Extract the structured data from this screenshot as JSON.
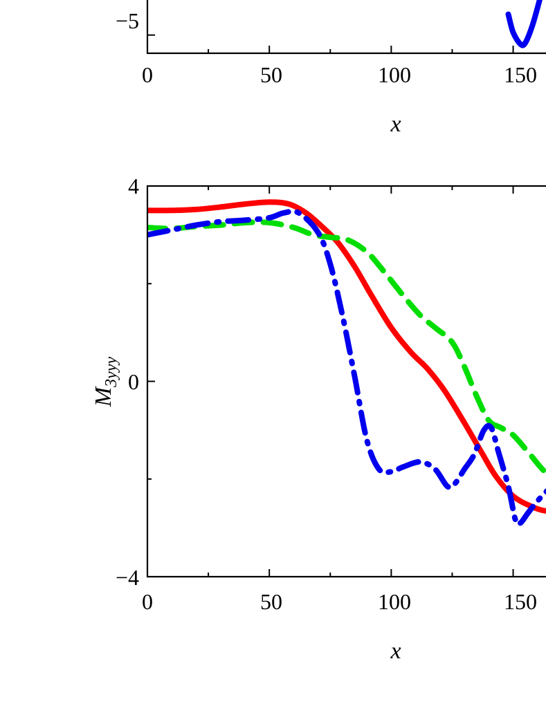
{
  "chart_data": [
    {
      "type": "line",
      "xlabel": "x",
      "ylabel": "",
      "xlim": [
        0,
        170
      ],
      "ylim": [
        -5.7,
        3
      ],
      "x_ticks": [
        "0",
        "50",
        "100",
        "150"
      ],
      "y_ticks": [
        "−5"
      ],
      "grid": false,
      "series": [
        {
          "color": "#0000ee",
          "style": "solid",
          "points": [
            [
              148,
              -4.2
            ],
            [
              150,
              -4.9
            ],
            [
              153,
              -5.35
            ],
            [
              155,
              -5.3
            ],
            [
              158,
              -4.6
            ],
            [
              161,
              -3.6
            ],
            [
              164,
              -2.6
            ]
          ]
        }
      ]
    },
    {
      "type": "line",
      "xlabel": "x",
      "ylabel": "M",
      "ylabel_sub": "3yyy",
      "xlim": [
        0,
        170
      ],
      "ylim": [
        -4,
        4
      ],
      "x_ticks": [
        "0",
        "50",
        "100",
        "150"
      ],
      "y_ticks": [
        "4",
        "0",
        "−4"
      ],
      "grid": false,
      "series": [
        {
          "color": "#ff0000",
          "style": "solid",
          "points": [
            [
              0,
              3.5
            ],
            [
              10,
              3.5
            ],
            [
              20,
              3.52
            ],
            [
              30,
              3.57
            ],
            [
              40,
              3.63
            ],
            [
              50,
              3.67
            ],
            [
              58,
              3.63
            ],
            [
              65,
              3.45
            ],
            [
              72,
              3.15
            ],
            [
              78,
              2.85
            ],
            [
              85,
              2.35
            ],
            [
              92,
              1.75
            ],
            [
              100,
              1.1
            ],
            [
              108,
              0.6
            ],
            [
              115,
              0.25
            ],
            [
              122,
              -0.2
            ],
            [
              130,
              -0.85
            ],
            [
              137,
              -1.45
            ],
            [
              143,
              -1.95
            ],
            [
              150,
              -2.35
            ],
            [
              157,
              -2.55
            ],
            [
              163,
              -2.65
            ],
            [
              170,
              -2.65
            ]
          ]
        },
        {
          "color": "#00dd00",
          "style": "dashed",
          "points": [
            [
              0,
              3.15
            ],
            [
              10,
              3.13
            ],
            [
              20,
              3.17
            ],
            [
              30,
              3.2
            ],
            [
              40,
              3.25
            ],
            [
              50,
              3.25
            ],
            [
              60,
              3.15
            ],
            [
              68,
              3.0
            ],
            [
              75,
              2.95
            ],
            [
              82,
              2.9
            ],
            [
              90,
              2.65
            ],
            [
              97,
              2.25
            ],
            [
              105,
              1.75
            ],
            [
              112,
              1.35
            ],
            [
              118,
              1.1
            ],
            [
              125,
              0.8
            ],
            [
              130,
              0.3
            ],
            [
              135,
              -0.3
            ],
            [
              140,
              -0.8
            ],
            [
              145,
              -0.95
            ],
            [
              150,
              -1.1
            ],
            [
              157,
              -1.5
            ],
            [
              163,
              -1.85
            ],
            [
              170,
              -2.1
            ]
          ]
        },
        {
          "color": "#0000ee",
          "style": "dashdot",
          "points": [
            [
              0,
              3.0
            ],
            [
              10,
              3.1
            ],
            [
              20,
              3.2
            ],
            [
              30,
              3.27
            ],
            [
              40,
              3.3
            ],
            [
              50,
              3.35
            ],
            [
              56,
              3.45
            ],
            [
              62,
              3.45
            ],
            [
              70,
              3.05
            ],
            [
              75,
              2.4
            ],
            [
              80,
              1.35
            ],
            [
              85,
              0.1
            ],
            [
              90,
              -1.2
            ],
            [
              95,
              -1.8
            ],
            [
              100,
              -1.85
            ],
            [
              105,
              -1.75
            ],
            [
              112,
              -1.65
            ],
            [
              118,
              -1.8
            ],
            [
              123,
              -2.15
            ],
            [
              126,
              -2.1
            ],
            [
              130,
              -1.8
            ],
            [
              134,
              -1.5
            ],
            [
              138,
              -1.0
            ],
            [
              141,
              -0.95
            ],
            [
              144,
              -1.45
            ],
            [
              148,
              -2.15
            ],
            [
              151,
              -2.85
            ],
            [
              153,
              -2.9
            ],
            [
              156,
              -2.7
            ],
            [
              160,
              -2.45
            ],
            [
              165,
              -2.2
            ],
            [
              170,
              -2.1
            ]
          ]
        }
      ]
    }
  ]
}
